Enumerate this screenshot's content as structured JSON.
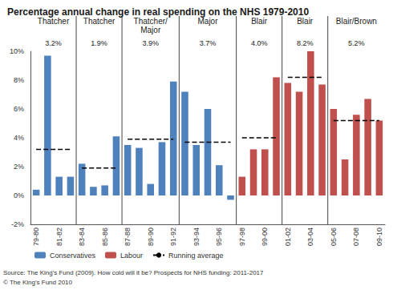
{
  "chart_data": {
    "type": "bar",
    "title": "Percentage annual change in real spending on the NHS 1979-2010",
    "categories": [
      "79-80",
      null,
      "81-82",
      null,
      "83-84",
      null,
      "85-86",
      null,
      "87-88",
      null,
      "89-90",
      null,
      "91-92",
      null,
      "93-94",
      null,
      "95-96",
      null,
      "97-98",
      null,
      "99-00",
      null,
      "01-02",
      null,
      "03-04",
      null,
      "05-06",
      null,
      "07-08",
      null,
      "09-10"
    ],
    "series": [
      {
        "name": "Conservatives",
        "color": "#4f81bd",
        "values": [
          0.4,
          9.7,
          1.3,
          1.3,
          2.2,
          0.6,
          0.7,
          4.1,
          3.5,
          3.3,
          0.8,
          3.7,
          7.9,
          7.2,
          3.5,
          6.0,
          2.1,
          -0.3,
          null,
          null,
          null,
          null,
          null,
          null,
          null,
          null,
          null,
          null,
          null,
          null,
          null
        ]
      },
      {
        "name": "Labour",
        "color": "#c0504d",
        "values": [
          null,
          null,
          null,
          null,
          null,
          null,
          null,
          null,
          null,
          null,
          null,
          null,
          null,
          null,
          null,
          null,
          null,
          null,
          1.3,
          3.2,
          3.2,
          8.2,
          7.8,
          7.2,
          10.0,
          7.7,
          6.0,
          2.5,
          5.6,
          6.7,
          5.2
        ]
      },
      {
        "name": "Running average",
        "type": "line",
        "line_style": "dashed",
        "color": "#000000",
        "values": [
          3.2,
          3.2,
          3.2,
          3.2,
          1.9,
          1.9,
          1.9,
          1.9,
          3.9,
          3.9,
          3.9,
          3.9,
          3.9,
          3.7,
          3.7,
          3.7,
          3.7,
          3.7,
          4.0,
          4.0,
          4.0,
          4.0,
          8.2,
          8.2,
          8.2,
          8.2,
          5.2,
          5.2,
          5.2,
          5.2,
          5.2
        ]
      }
    ],
    "periods": [
      {
        "name": "Thatcher",
        "label": "3.2%"
      },
      {
        "name": "Thatcher",
        "label": "1.9%"
      },
      {
        "name": "Thatcher/ Major",
        "label": "3.9%"
      },
      {
        "name": "Major",
        "label": "3.7%"
      },
      {
        "name": "Blair",
        "label": "4.0%"
      },
      {
        "name": "Blair",
        "label": "8.2%"
      },
      {
        "name": "Blair/Brown",
        "label": "5.2%"
      }
    ],
    "ylim": [
      -2,
      10
    ],
    "yticks": [
      {
        "value": -2,
        "label": "-2%"
      },
      {
        "value": 0,
        "label": "0%"
      },
      {
        "value": 2,
        "label": "2%"
      },
      {
        "value": 4,
        "label": "4%"
      },
      {
        "value": 6,
        "label": "6%"
      },
      {
        "value": 8,
        "label": "8%"
      },
      {
        "value": 10,
        "label": "10%"
      }
    ],
    "grid": false,
    "legend": "bottom",
    "source": "Source: The King's Fund (2009). How cold will it be? Prospects for NHS funding: 2011-2017",
    "copyright": "© The King's Fund 2010"
  }
}
